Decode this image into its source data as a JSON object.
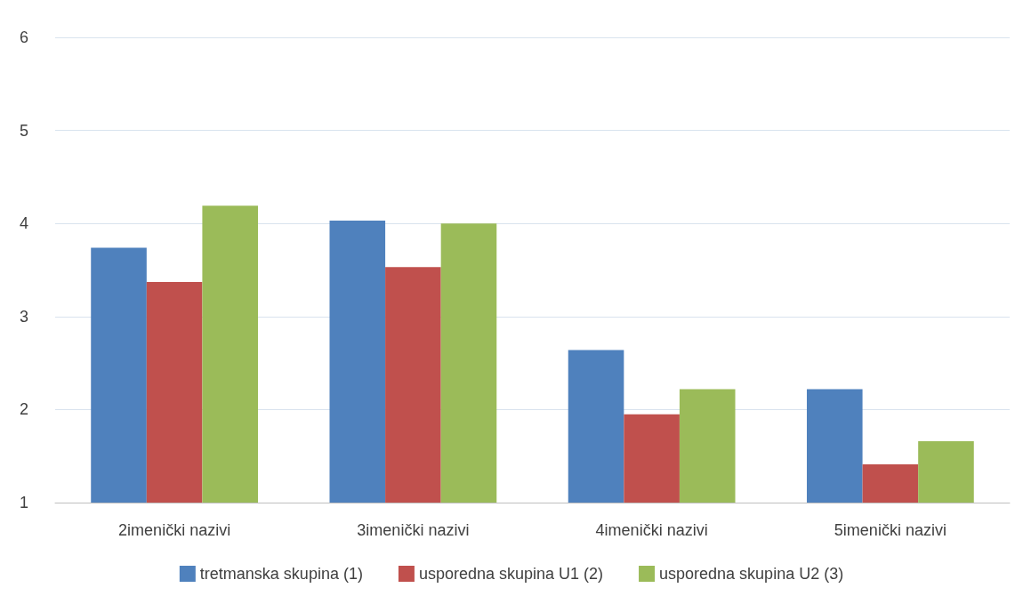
{
  "chart_data": {
    "type": "bar",
    "categories": [
      "2imenički nazivi",
      "3imenički nazivi",
      "4imenički nazivi",
      "5imenički nazivi"
    ],
    "series": [
      {
        "name": "tretmanska skupina (1)",
        "color": "#4f81bd",
        "values": [
          3.74,
          4.03,
          2.64,
          2.22
        ]
      },
      {
        "name": "usporedna skupina U1 (2)",
        "color": "#c0504d",
        "values": [
          3.37,
          3.53,
          1.95,
          1.41
        ]
      },
      {
        "name": "usporedna skupina U2 (3)",
        "color": "#9bbb59",
        "values": [
          4.19,
          4.0,
          2.22,
          1.66
        ]
      }
    ],
    "ylim": [
      1,
      6
    ],
    "yticks": [
      1,
      2,
      3,
      4,
      5,
      6
    ],
    "grid": "y",
    "legend": "bottom"
  }
}
